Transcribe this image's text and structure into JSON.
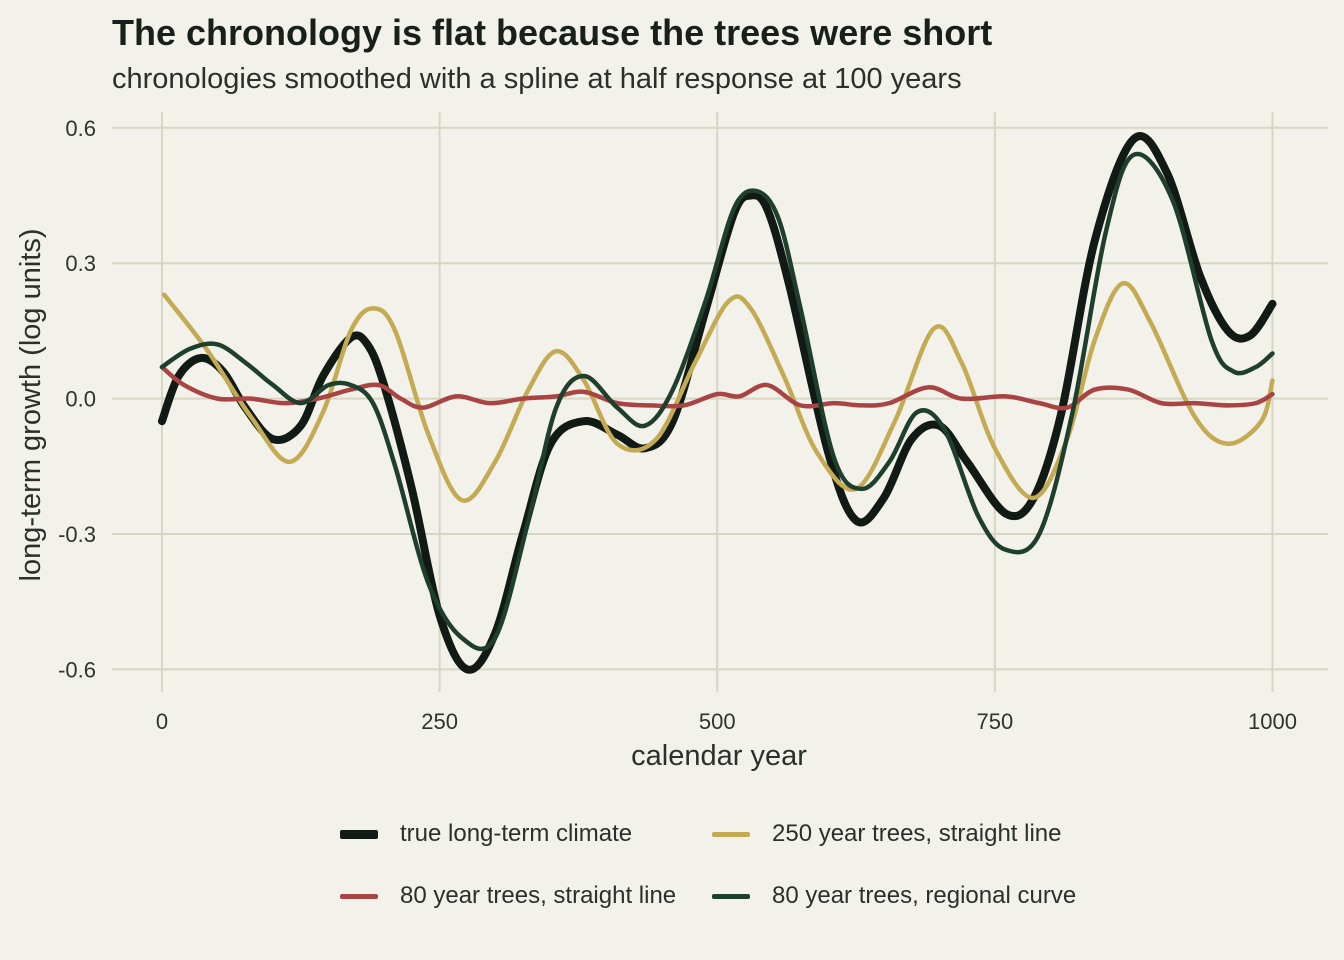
{
  "chart_data": {
    "type": "line",
    "title": "The chronology is flat because the trees were short",
    "subtitle": "chronologies smoothed with a spline at half response at 100 years",
    "xlabel": "calendar year",
    "ylabel": "long-term growth (log units)",
    "xlim": [
      -45,
      1050
    ],
    "ylim": [
      -0.65,
      0.635
    ],
    "x_ticks": [
      0,
      250,
      500,
      750,
      1000
    ],
    "x_tick_labels": [
      "0",
      "250",
      "500",
      "750",
      "1000"
    ],
    "y_ticks": [
      -0.6,
      -0.3,
      0.0,
      0.3,
      0.6
    ],
    "y_tick_labels": [
      "-0.6",
      "-0.3",
      "0.0",
      "0.3",
      "0.6"
    ],
    "grid": true,
    "legend_position": "bottom",
    "series": [
      {
        "name": "true long-term climate",
        "color": "#111a14",
        "x": [
          0,
          15,
          35,
          55,
          75,
          100,
          125,
          145,
          170,
          185,
          200,
          225,
          250,
          275,
          300,
          325,
          350,
          380,
          410,
          435,
          460,
          490,
          515,
          530,
          545,
          565,
          600,
          625,
          650,
          675,
          700,
          725,
          760,
          785,
          810,
          840,
          875,
          905,
          935,
          960,
          980,
          1000
        ],
        "y": [
          -0.05,
          0.05,
          0.09,
          0.06,
          -0.02,
          -0.09,
          -0.06,
          0.05,
          0.135,
          0.12,
          0.03,
          -0.2,
          -0.48,
          -0.6,
          -0.52,
          -0.3,
          -0.1,
          -0.05,
          -0.08,
          -0.11,
          -0.05,
          0.2,
          0.41,
          0.45,
          0.42,
          0.25,
          -0.12,
          -0.27,
          -0.22,
          -0.09,
          -0.06,
          -0.14,
          -0.255,
          -0.22,
          -0.03,
          0.35,
          0.575,
          0.5,
          0.27,
          0.15,
          0.14,
          0.21
        ]
      },
      {
        "name": "250 year trees, straight line",
        "color": "#c4aa52",
        "x": [
          2,
          40,
          80,
          115,
          145,
          170,
          190,
          210,
          240,
          270,
          300,
          330,
          355,
          380,
          410,
          445,
          480,
          510,
          530,
          560,
          590,
          625,
          660,
          695,
          720,
          750,
          785,
          815,
          840,
          865,
          890,
          930,
          960,
          990,
          1000
        ],
        "y": [
          0.23,
          0.11,
          -0.04,
          -0.14,
          -0.03,
          0.15,
          0.2,
          0.15,
          -0.08,
          -0.225,
          -0.14,
          0.02,
          0.105,
          0.04,
          -0.1,
          -0.09,
          0.08,
          0.215,
          0.2,
          0.05,
          -0.12,
          -0.2,
          -0.05,
          0.155,
          0.08,
          -0.11,
          -0.22,
          -0.09,
          0.13,
          0.255,
          0.17,
          -0.04,
          -0.1,
          -0.05,
          0.04
        ]
      },
      {
        "name": "80 year trees, straight line",
        "color": "#a84544",
        "x": [
          0,
          20,
          50,
          80,
          110,
          140,
          170,
          195,
          215,
          235,
          265,
          295,
          325,
          355,
          380,
          410,
          440,
          470,
          500,
          520,
          545,
          575,
          605,
          630,
          655,
          690,
          720,
          760,
          790,
          815,
          840,
          870,
          900,
          930,
          960,
          985,
          1000
        ],
        "y": [
          0.07,
          0.03,
          0.0,
          0.0,
          -0.01,
          0.0,
          0.02,
          0.03,
          0.0,
          -0.02,
          0.005,
          -0.01,
          0.0,
          0.005,
          0.015,
          -0.01,
          -0.015,
          -0.015,
          0.01,
          0.005,
          0.03,
          -0.015,
          -0.01,
          -0.015,
          -0.01,
          0.025,
          0.0,
          0.005,
          -0.01,
          -0.02,
          0.02,
          0.02,
          -0.01,
          -0.01,
          -0.015,
          -0.01,
          0.01
        ]
      },
      {
        "name": "80 year trees, regional curve",
        "color": "#1e3f2d",
        "x": [
          0,
          25,
          50,
          75,
          100,
          125,
          150,
          170,
          190,
          210,
          240,
          270,
          300,
          330,
          355,
          380,
          410,
          435,
          460,
          490,
          515,
          535,
          555,
          575,
          605,
          630,
          655,
          680,
          705,
          735,
          760,
          790,
          820,
          850,
          875,
          910,
          945,
          965,
          985,
          1000
        ],
        "y": [
          0.07,
          0.11,
          0.12,
          0.08,
          0.03,
          -0.01,
          0.03,
          0.03,
          -0.01,
          -0.15,
          -0.41,
          -0.53,
          -0.53,
          -0.27,
          -0.02,
          0.05,
          -0.02,
          -0.06,
          0.02,
          0.22,
          0.42,
          0.46,
          0.4,
          0.2,
          -0.13,
          -0.2,
          -0.14,
          -0.03,
          -0.07,
          -0.26,
          -0.335,
          -0.3,
          -0.03,
          0.37,
          0.54,
          0.44,
          0.13,
          0.06,
          0.07,
          0.1
        ]
      }
    ],
    "legend": [
      {
        "label": "true long-term climate",
        "color": "#111a14",
        "weight": "thick"
      },
      {
        "label": "250 year trees, straight line",
        "color": "#c4aa52",
        "weight": "normal"
      },
      {
        "label": "80 year trees, straight line",
        "color": "#a84544",
        "weight": "normal"
      },
      {
        "label": "80 year trees, regional curve",
        "color": "#1e3f2d",
        "weight": "normal"
      }
    ]
  }
}
